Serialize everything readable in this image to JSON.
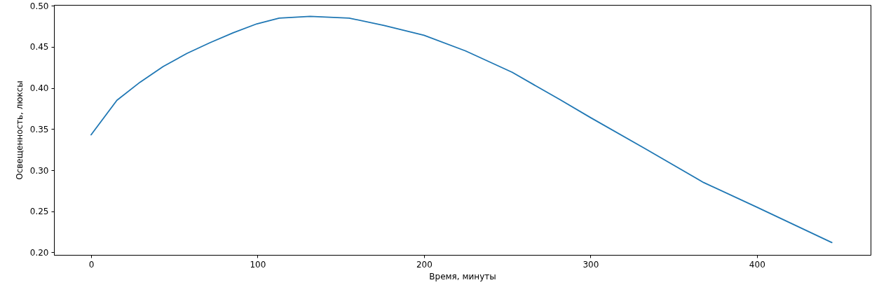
{
  "chart_data": {
    "type": "line",
    "xlabel": "Время, минуты",
    "ylabel": "Освещенность, люксы",
    "x": [
      0,
      15.5,
      29.4,
      43.3,
      57.6,
      71.4,
      85.3,
      99.6,
      113,
      131.6,
      155,
      176,
      200,
      225,
      253,
      281.5,
      300,
      333,
      368,
      400,
      445
    ],
    "series": [
      {
        "color": "#1f77b4",
        "values": [
          0.343,
          0.385,
          0.407,
          0.426,
          0.442,
          0.455,
          0.467,
          0.478,
          0.485,
          0.487,
          0.485,
          0.476,
          0.464,
          0.445,
          0.419,
          0.386,
          0.364,
          0.326,
          0.285,
          0.255,
          0.212
        ]
      }
    ],
    "xlim": [
      -22.3,
      468.3
    ],
    "xticks": [
      0,
      100,
      200,
      300,
      400
    ],
    "ylim": [
      0.197,
      0.501
    ],
    "yticks": [
      {
        "value": 0.2,
        "label": "0.20"
      },
      {
        "value": 0.25,
        "label": "0.25"
      },
      {
        "value": 0.3,
        "label": "0.30"
      },
      {
        "value": 0.35,
        "label": "0.35"
      },
      {
        "value": 0.4,
        "label": "0.40"
      },
      {
        "value": 0.45,
        "label": "0.45"
      },
      {
        "value": 0.5,
        "label": "0.50"
      }
    ],
    "grid": false,
    "marker": "none",
    "line_style": "solid"
  }
}
